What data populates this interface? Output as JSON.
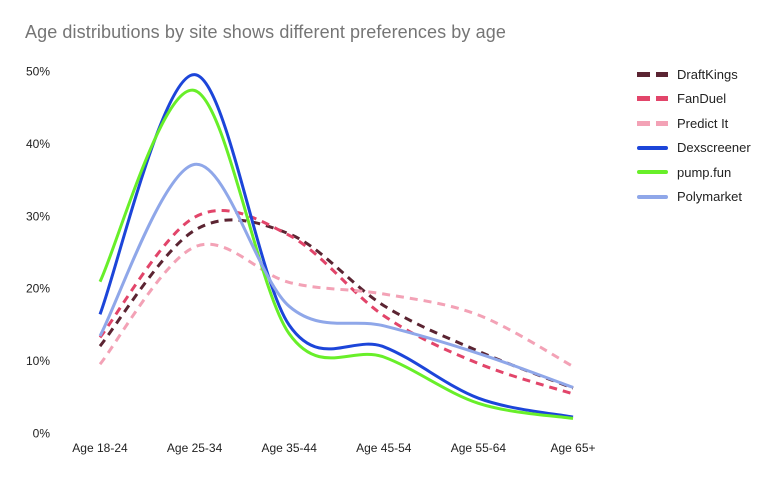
{
  "title": "Age distributions by site shows different preferences by age",
  "chart_data": {
    "type": "line",
    "title": "Age distributions by site shows different preferences by age",
    "xlabel": "",
    "ylabel": "",
    "categories": [
      "Age 18-24",
      "Age 25-34",
      "Age 35-44",
      "Age 45-54",
      "Age 55-64",
      "Age 65+"
    ],
    "series": [
      {
        "name": "DraftKings",
        "color": "#5b2432",
        "line_style": "dashed",
        "values": [
          12.0,
          28.0,
          27.5,
          17.6,
          11.3,
          6.2
        ]
      },
      {
        "name": "FanDuel",
        "color": "#e2456a",
        "line_style": "dashed",
        "values": [
          13.2,
          29.8,
          27.3,
          16.2,
          9.6,
          5.4
        ]
      },
      {
        "name": "Predict It",
        "color": "#f3a2b6",
        "line_style": "dashed",
        "values": [
          9.5,
          25.7,
          20.8,
          19.2,
          16.3,
          9.2
        ]
      },
      {
        "name": "Dexscreener",
        "color": "#1c45d9",
        "line_style": "solid",
        "values": [
          16.4,
          49.5,
          14.9,
          11.9,
          4.8,
          2.2
        ]
      },
      {
        "name": "pump.fun",
        "color": "#68ef29",
        "line_style": "solid",
        "values": [
          20.9,
          47.3,
          13.7,
          10.5,
          4.1,
          2.0
        ]
      },
      {
        "name": "Polymarket",
        "color": "#8fa7e9",
        "line_style": "solid",
        "values": [
          13.4,
          37.1,
          17.5,
          14.8,
          11.0,
          6.3
        ]
      }
    ],
    "y_ticks": {
      "labels": [
        "0%",
        "10%",
        "20%",
        "30%",
        "40%",
        "50%"
      ],
      "values": [
        0,
        10,
        20,
        30,
        40,
        50
      ]
    },
    "ylim": [
      0,
      50
    ],
    "grid": false,
    "background": "#ffffff",
    "title_color": "#757575",
    "axis_text_color": "#222222",
    "legend_position": "right",
    "curve": "smooth"
  }
}
